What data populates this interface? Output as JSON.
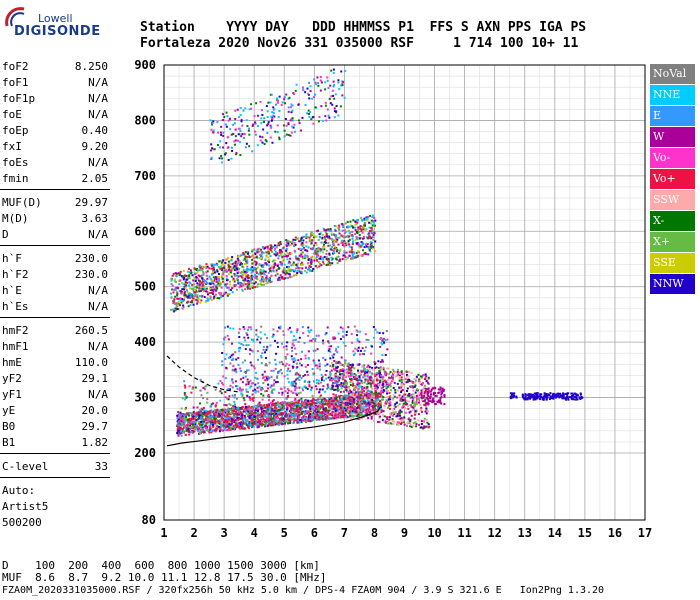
{
  "logo": {
    "top": "Lowell",
    "main": "DIGISONDE"
  },
  "header": {
    "line1": "Station    YYYY DAY   DDD HHMMSS P1  FFS S AXN PPS IGA PS",
    "line2": "Fortaleza 2020 Nov26 331 035000 RSF     1 714 100 10+ 11"
  },
  "params": {
    "group1": [
      {
        "label": "foF2",
        "value": "8.250"
      },
      {
        "label": "foF1",
        "value": "N/A"
      },
      {
        "label": "foF1p",
        "value": "N/A"
      },
      {
        "label": "foE",
        "value": "N/A"
      },
      {
        "label": "foEp",
        "value": "0.40"
      },
      {
        "label": "fxI",
        "value": "9.20"
      },
      {
        "label": "foEs",
        "value": "N/A"
      },
      {
        "label": "fmin",
        "value": "2.05"
      }
    ],
    "group2": [
      {
        "label": "MUF(D)",
        "value": "29.97"
      },
      {
        "label": "M(D)",
        "value": "3.63"
      },
      {
        "label": "D",
        "value": "N/A"
      }
    ],
    "group3": [
      {
        "label": "h`F",
        "value": "230.0"
      },
      {
        "label": "h`F2",
        "value": "230.0"
      },
      {
        "label": "h`E",
        "value": "N/A"
      },
      {
        "label": "h`Es",
        "value": "N/A"
      }
    ],
    "group4": [
      {
        "label": "hmF2",
        "value": "260.5"
      },
      {
        "label": "hmF1",
        "value": "N/A"
      },
      {
        "label": "hmE",
        "value": "110.0"
      },
      {
        "label": "yF2",
        "value": "29.1"
      },
      {
        "label": "yF1",
        "value": "N/A"
      },
      {
        "label": "yE",
        "value": "20.0"
      },
      {
        "label": "B0",
        "value": "29.7"
      },
      {
        "label": "B1",
        "value": "1.82"
      }
    ],
    "group5": [
      {
        "label": "C-level",
        "value": "33"
      }
    ],
    "auto": [
      "Auto:",
      "Artist5",
      "500200"
    ]
  },
  "legend": [
    {
      "label": "NoVal",
      "color": "#808080"
    },
    {
      "label": "NNE",
      "color": "#00ccff"
    },
    {
      "label": "E",
      "color": "#3399ff"
    },
    {
      "label": "W",
      "color": "#aa0099"
    },
    {
      "label": "Vo-",
      "color": "#ff33cc"
    },
    {
      "label": "Vo+",
      "color": "#ee1144"
    },
    {
      "label": "SSW",
      "color": "#ffaaaa"
    },
    {
      "label": "X-",
      "color": "#007700"
    },
    {
      "label": "X+",
      "color": "#66bb44"
    },
    {
      "label": "SSE",
      "color": "#cccc00"
    },
    {
      "label": "NNW",
      "color": "#2200cc"
    }
  ],
  "footer": {
    "d_line": "D    100  200  400  600  800 1000 1500 3000 [km]",
    "muf_line": "MUF  8.6  8.7  9.2 10.0 11.1 12.8 17.5 30.0 [MHz]",
    "file_line": "FZA0M_2020331035000.RSF / 320fx256h 50 kHz 5.0 km / DPS-4 FZA0M 904 / 3.9 S 321.6 E   Ion2Png 1.3.20"
  },
  "chart_data": {
    "type": "scatter",
    "title": "",
    "xlabel": "",
    "ylabel": "",
    "x_ticks": [
      1,
      2,
      3,
      4,
      5,
      6,
      7,
      8,
      9,
      10,
      11,
      12,
      13,
      14,
      15,
      16,
      17
    ],
    "y_ticks": [
      80,
      200,
      300,
      400,
      500,
      600,
      700,
      800,
      900
    ],
    "xlim": [
      1,
      17
    ],
    "y_scale": "custom (80 at bottom, 200-900 linear)",
    "grid": true,
    "legend_position": "right",
    "traces": [
      {
        "name": "F-layer O trace",
        "x_range": [
          1.4,
          8.2
        ],
        "height_range": [
          230,
          300
        ]
      },
      {
        "name": "F-layer second hop",
        "x_range": [
          1.2,
          8.0
        ],
        "height_range": [
          450,
          620
        ]
      },
      {
        "name": "F-layer third hop",
        "x_range": [
          2.5,
          7.0
        ],
        "height_range": [
          710,
          880
        ]
      },
      {
        "name": "X trace",
        "x_range": [
          6.5,
          10.0
        ],
        "height_range": [
          270,
          380
        ]
      },
      {
        "name": "Oblique echoes",
        "x_range": [
          12.5,
          15.0
        ],
        "height_range": [
          298,
          312
        ]
      }
    ],
    "profile_curve": {
      "x": [
        1.1,
        1.6,
        2.2,
        3.0,
        4.0,
        5.0,
        6.0,
        7.0,
        7.6,
        8.1,
        8.2
      ],
      "y": [
        213,
        218,
        222,
        228,
        234,
        240,
        247,
        256,
        265,
        275,
        283
      ]
    },
    "dashed_curve": {
      "x": [
        1.1,
        1.5,
        2.0,
        2.5,
        3.0,
        3.5
      ],
      "y": [
        375,
        355,
        336,
        322,
        314,
        310
      ]
    }
  }
}
